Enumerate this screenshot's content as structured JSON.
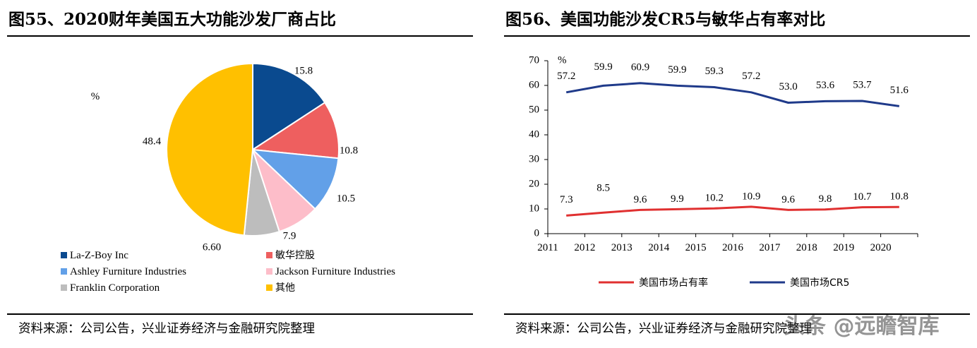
{
  "left_panel": {
    "title": "图55、2020财年美国五大功能沙发厂商占比",
    "source": "资料来源：公司公告，兴业证券经济与金融研究院整理"
  },
  "right_panel": {
    "title": "图56、美国功能沙发CR5与敏华占有率对比",
    "source": "资料来源：公司公告，兴业证券经济与金融研究院整理"
  },
  "watermark": "头条 @远瞻智库",
  "chart_data": [
    {
      "type": "pie",
      "title": "图55、2020财年美国五大功能沙发厂商占比",
      "unit_label": "%",
      "slices": [
        {
          "name": "La-Z-Boy Inc",
          "value": 15.8,
          "label": "15.8",
          "color": "#0A4A8F"
        },
        {
          "name": "敏华控股",
          "value": 10.8,
          "label": "10.8",
          "color": "#EE5F5F"
        },
        {
          "name": "Ashley Furniture Industries",
          "value": 10.5,
          "label": "10.5",
          "color": "#62A0E8"
        },
        {
          "name": "Jackson Furniture Industries",
          "value": 7.9,
          "label": "7.9",
          "color": "#FDBDC9"
        },
        {
          "name": "Franklin Corporation",
          "value": 6.6,
          "label": "6.60",
          "color": "#BDBDBD"
        },
        {
          "name": "其他",
          "value": 48.4,
          "label": "48.4",
          "color": "#FFC000"
        }
      ],
      "legend_position": "bottom"
    },
    {
      "type": "line",
      "title": "图56、美国功能沙发CR5与敏华占有率对比",
      "ylabel": "%",
      "x": [
        "2011",
        "2012",
        "2013",
        "2014",
        "2015",
        "2016",
        "2017",
        "2018",
        "2019",
        "2020"
      ],
      "ylim": [
        0,
        70
      ],
      "yticks": [
        "0",
        "10",
        "20",
        "30",
        "40",
        "50",
        "60",
        "70"
      ],
      "series": [
        {
          "name": "美国市场占有率",
          "color": "#E03030",
          "values": [
            7.3,
            8.5,
            9.6,
            9.9,
            10.2,
            10.9,
            9.6,
            9.8,
            10.7,
            10.8
          ],
          "labels": [
            "7.3",
            "8.5",
            "9.6",
            "9.9",
            "10.2",
            "10.9",
            "9.6",
            "9.8",
            "10.7",
            "10.8"
          ]
        },
        {
          "name": "美国市场CR5",
          "color": "#1F3A8A",
          "values": [
            57.2,
            59.9,
            60.9,
            59.9,
            59.3,
            57.2,
            53.0,
            53.6,
            53.7,
            51.6
          ],
          "labels": [
            "57.2",
            "59.9",
            "60.9",
            "59.9",
            "59.3",
            "57.2",
            "53.0",
            "53.6",
            "53.7",
            "51.6"
          ]
        }
      ],
      "legend_position": "bottom"
    }
  ]
}
